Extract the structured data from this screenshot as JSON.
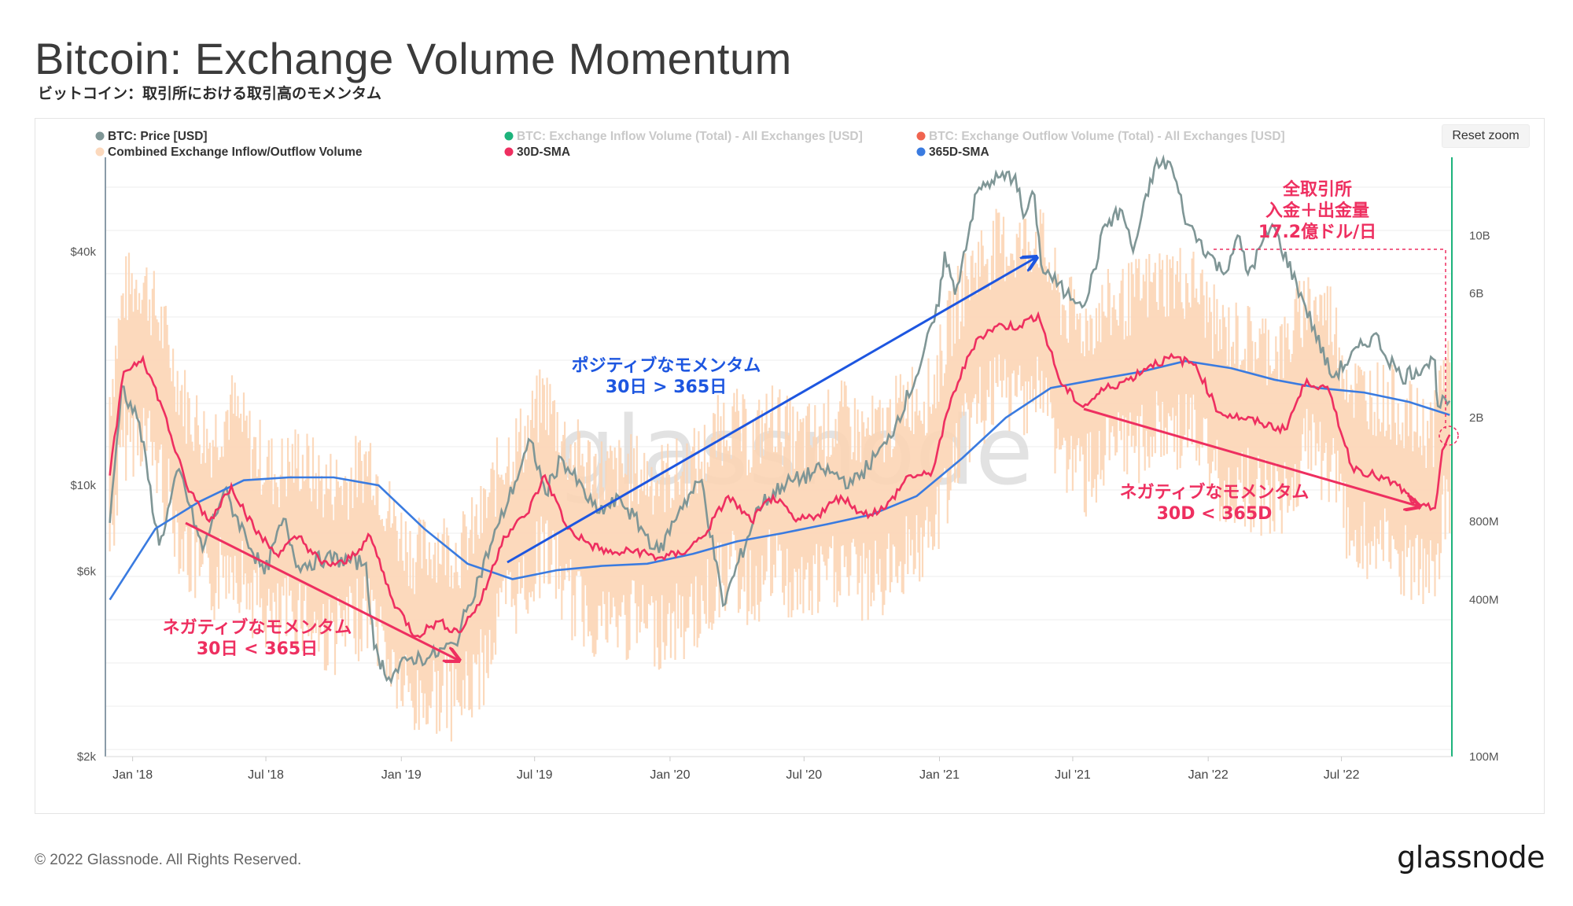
{
  "header": {
    "title": "Bitcoin: Exchange Volume Momentum",
    "subtitle": "ビットコイン：取引所における取引高のモメンタム"
  },
  "toolbar": {
    "reset_zoom_label": "Reset zoom"
  },
  "footer": {
    "copyright": "© 2022 Glassnode. All Rights Reserved.",
    "logo_text": "glassnode"
  },
  "watermark": "glassnode",
  "chart_data": {
    "type": "line",
    "legend": [
      {
        "label": "BTC: Price [USD]",
        "color": "#7f9696",
        "active": true
      },
      {
        "label": "BTC: Exchange Inflow Volume (Total) - All Exchanges [USD]",
        "color": "#1db37b",
        "active": false
      },
      {
        "label": "BTC: Exchange Outflow Volume (Total) - All Exchanges [USD]",
        "color": "#f0644f",
        "active": false
      },
      {
        "label": "Combined Exchange Inflow/Outflow Volume",
        "color": "#fcd9bd",
        "active": true
      },
      {
        "label": "30D-SMA",
        "color": "#ee2f60",
        "active": true
      },
      {
        "label": "365D-SMA",
        "color": "#3a7be0",
        "active": true
      }
    ],
    "x_ticks": [
      "Jan '18",
      "Jul '18",
      "Jan '19",
      "Jul '19",
      "Jan '20",
      "Jul '20",
      "Jan '21",
      "Jul '21",
      "Jan '22",
      "Jul '22"
    ],
    "y_left": {
      "scale": "log",
      "range": [
        2000,
        70000
      ],
      "ticks": [
        {
          "v": 2000,
          "label": "$2k"
        },
        {
          "v": 6000,
          "label": "$6k"
        },
        {
          "v": 10000,
          "label": "$10k"
        },
        {
          "v": 40000,
          "label": "$40k"
        }
      ]
    },
    "y_right": {
      "scale": "log",
      "range": [
        100000000,
        20000000000
      ],
      "ticks": [
        {
          "v": 100000000,
          "label": "100M"
        },
        {
          "v": 400000000,
          "label": "400M"
        },
        {
          "v": 800000000,
          "label": "800M"
        },
        {
          "v": 2000000000,
          "label": "2B"
        },
        {
          "v": 6000000000,
          "label": "6B"
        },
        {
          "v": 10000000000,
          "label": "10B"
        }
      ]
    },
    "series": [
      {
        "name": "BTC: Price [USD]",
        "axis": "left",
        "color": "#7f9696",
        "points": [
          [
            "2017-12-01",
            8000
          ],
          [
            "2017-12-17",
            18000
          ],
          [
            "2018-01-10",
            14500
          ],
          [
            "2018-02-06",
            7000
          ],
          [
            "2018-03-05",
            11000
          ],
          [
            "2018-04-06",
            6800
          ],
          [
            "2018-05-05",
            9700
          ],
          [
            "2018-06-29",
            5900
          ],
          [
            "2018-07-25",
            8200
          ],
          [
            "2018-08-14",
            6200
          ],
          [
            "2018-09-20",
            6500
          ],
          [
            "2018-11-14",
            6300
          ],
          [
            "2018-11-25",
            3800
          ],
          [
            "2018-12-15",
            3200
          ],
          [
            "2019-01-15",
            3600
          ],
          [
            "2019-02-08",
            3600
          ],
          [
            "2019-03-15",
            3900
          ],
          [
            "2019-04-02",
            4900
          ],
          [
            "2019-05-14",
            8000
          ],
          [
            "2019-06-26",
            13000
          ],
          [
            "2019-07-16",
            9500
          ],
          [
            "2019-08-06",
            11800
          ],
          [
            "2019-09-24",
            8500
          ],
          [
            "2019-10-26",
            9200
          ],
          [
            "2019-12-17",
            6700
          ],
          [
            "2020-01-15",
            8800
          ],
          [
            "2020-02-13",
            10300
          ],
          [
            "2020-03-13",
            4900
          ],
          [
            "2020-04-30",
            8800
          ],
          [
            "2020-06-01",
            10000
          ],
          [
            "2020-07-27",
            11000
          ],
          [
            "2020-09-05",
            10100
          ],
          [
            "2020-10-21",
            12800
          ],
          [
            "2020-11-30",
            19000
          ],
          [
            "2020-12-31",
            29000
          ],
          [
            "2021-01-08",
            40000
          ],
          [
            "2021-01-22",
            31000
          ],
          [
            "2021-02-21",
            57000
          ],
          [
            "2021-03-13",
            61000
          ],
          [
            "2021-04-14",
            63000
          ],
          [
            "2021-04-25",
            49000
          ],
          [
            "2021-05-10",
            56000
          ],
          [
            "2021-05-19",
            37000
          ],
          [
            "2021-06-22",
            31000
          ],
          [
            "2021-07-20",
            30000
          ],
          [
            "2021-08-14",
            47000
          ],
          [
            "2021-09-06",
            51000
          ],
          [
            "2021-09-21",
            40000
          ],
          [
            "2021-10-20",
            66000
          ],
          [
            "2021-11-10",
            68000
          ],
          [
            "2021-12-04",
            47000
          ],
          [
            "2022-01-22",
            35000
          ],
          [
            "2022-02-10",
            44000
          ],
          [
            "2022-02-24",
            35000
          ],
          [
            "2022-03-29",
            47000
          ],
          [
            "2022-05-10",
            30000
          ],
          [
            "2022-06-18",
            19000
          ],
          [
            "2022-08-14",
            24500
          ],
          [
            "2022-09-20",
            19000
          ],
          [
            "2022-10-25",
            20500
          ],
          [
            "2022-11-05",
            21000
          ],
          [
            "2022-11-09",
            16000
          ],
          [
            "2022-11-25",
            16500
          ]
        ]
      },
      {
        "name": "Combined Exchange Inflow/Outflow Volume",
        "axis": "right",
        "color": "#fcd9bd",
        "kind": "oscillating"
      },
      {
        "name": "30D-SMA",
        "axis": "right",
        "color": "#ee2f60",
        "points": [
          [
            "2017-12-01",
            1200000000
          ],
          [
            "2017-12-20",
            3000000000
          ],
          [
            "2018-01-15",
            3400000000
          ],
          [
            "2018-02-10",
            2200000000
          ],
          [
            "2018-03-15",
            1100000000
          ],
          [
            "2018-04-15",
            800000000
          ],
          [
            "2018-05-15",
            1100000000
          ],
          [
            "2018-06-15",
            750000000
          ],
          [
            "2018-07-15",
            600000000
          ],
          [
            "2018-08-15",
            700000000
          ],
          [
            "2018-09-15",
            550000000
          ],
          [
            "2018-10-15",
            550000000
          ],
          [
            "2018-11-20",
            700000000
          ],
          [
            "2018-12-20",
            400000000
          ],
          [
            "2019-01-20",
            290000000
          ],
          [
            "2019-02-20",
            330000000
          ],
          [
            "2019-03-20",
            300000000
          ],
          [
            "2019-04-20",
            400000000
          ],
          [
            "2019-05-20",
            700000000
          ],
          [
            "2019-06-20",
            850000000
          ],
          [
            "2019-07-15",
            1200000000
          ],
          [
            "2019-08-15",
            750000000
          ],
          [
            "2019-09-15",
            650000000
          ],
          [
            "2019-10-15",
            600000000
          ],
          [
            "2019-11-15",
            620000000
          ],
          [
            "2019-12-15",
            580000000
          ],
          [
            "2020-01-15",
            600000000
          ],
          [
            "2020-02-15",
            700000000
          ],
          [
            "2020-03-20",
            1000000000
          ],
          [
            "2020-04-20",
            800000000
          ],
          [
            "2020-05-20",
            1000000000
          ],
          [
            "2020-06-20",
            800000000
          ],
          [
            "2020-07-20",
            850000000
          ],
          [
            "2020-08-20",
            1000000000
          ],
          [
            "2020-09-20",
            850000000
          ],
          [
            "2020-10-20",
            900000000
          ],
          [
            "2020-11-20",
            1200000000
          ],
          [
            "2020-12-20",
            1200000000
          ],
          [
            "2021-01-20",
            2500000000
          ],
          [
            "2021-02-20",
            4000000000
          ],
          [
            "2021-03-20",
            4500000000
          ],
          [
            "2021-04-20",
            4500000000
          ],
          [
            "2021-05-15",
            5000000000
          ],
          [
            "2021-06-15",
            2700000000
          ],
          [
            "2021-07-15",
            2200000000
          ],
          [
            "2021-08-15",
            2600000000
          ],
          [
            "2021-09-15",
            2800000000
          ],
          [
            "2021-10-15",
            3200000000
          ],
          [
            "2021-11-15",
            3400000000
          ],
          [
            "2021-12-15",
            3200000000
          ],
          [
            "2022-01-15",
            2100000000
          ],
          [
            "2022-02-15",
            2000000000
          ],
          [
            "2022-03-15",
            1900000000
          ],
          [
            "2022-04-15",
            1800000000
          ],
          [
            "2022-05-15",
            2800000000
          ],
          [
            "2022-06-15",
            2500000000
          ],
          [
            "2022-07-15",
            1300000000
          ],
          [
            "2022-08-15",
            1200000000
          ],
          [
            "2022-09-15",
            1100000000
          ],
          [
            "2022-10-15",
            900000000
          ],
          [
            "2022-11-05",
            900000000
          ],
          [
            "2022-11-15",
            1500000000
          ],
          [
            "2022-11-25",
            1720000000
          ]
        ]
      },
      {
        "name": "365D-SMA",
        "axis": "right",
        "color": "#3a7be0",
        "points": [
          [
            "2017-12-01",
            400000000
          ],
          [
            "2018-02-01",
            750000000
          ],
          [
            "2018-04-01",
            950000000
          ],
          [
            "2018-06-01",
            1150000000
          ],
          [
            "2018-08-01",
            1180000000
          ],
          [
            "2018-10-01",
            1180000000
          ],
          [
            "2018-12-01",
            1100000000
          ],
          [
            "2019-02-01",
            750000000
          ],
          [
            "2019-04-01",
            550000000
          ],
          [
            "2019-06-01",
            480000000
          ],
          [
            "2019-08-01",
            520000000
          ],
          [
            "2019-10-01",
            540000000
          ],
          [
            "2019-12-01",
            550000000
          ],
          [
            "2020-02-01",
            600000000
          ],
          [
            "2020-04-01",
            670000000
          ],
          [
            "2020-06-01",
            720000000
          ],
          [
            "2020-08-01",
            780000000
          ],
          [
            "2020-10-01",
            850000000
          ],
          [
            "2020-12-01",
            1000000000
          ],
          [
            "2021-02-01",
            1400000000
          ],
          [
            "2021-04-01",
            2000000000
          ],
          [
            "2021-06-01",
            2600000000
          ],
          [
            "2021-08-01",
            2800000000
          ],
          [
            "2021-10-01",
            3000000000
          ],
          [
            "2021-12-01",
            3300000000
          ],
          [
            "2022-02-01",
            3100000000
          ],
          [
            "2022-04-01",
            2800000000
          ],
          [
            "2022-06-01",
            2600000000
          ],
          [
            "2022-08-01",
            2500000000
          ],
          [
            "2022-10-01",
            2300000000
          ],
          [
            "2022-11-25",
            2050000000
          ]
        ]
      }
    ],
    "annotations": [
      {
        "id": "neg1",
        "lines": [
          "ネガティブなモメンタム",
          "30日 < 365日"
        ],
        "color": "#ee2f60"
      },
      {
        "id": "pos",
        "lines": [
          "ポジティブなモメンタム",
          "30日 > 365日"
        ],
        "color": "#1d56e0"
      },
      {
        "id": "neg2",
        "lines": [
          "ネガティブなモメンタム",
          "30D < 365D"
        ],
        "color": "#ee2f60"
      },
      {
        "id": "total",
        "lines": [
          "全取引所",
          "入金＋出金量",
          "17.2億ドル/日"
        ],
        "color": "#ee2f60"
      }
    ]
  }
}
